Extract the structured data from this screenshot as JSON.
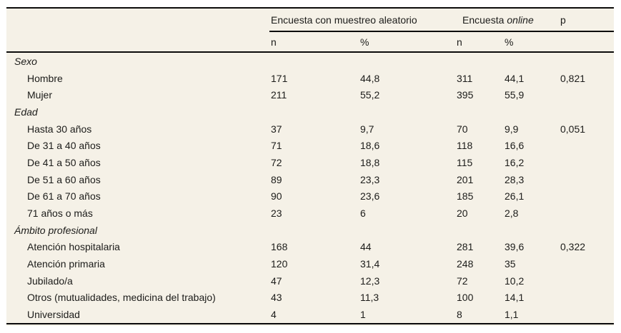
{
  "page": {
    "background": "#ffffff",
    "panel_background": "#f5f1e7",
    "rule_color": "#0b0b0b",
    "text_color": "#1c1c1a"
  },
  "table": {
    "header": {
      "group1": "Encuesta con muestreo aleatorio",
      "group2_prefix": "Encuesta",
      "group2_italic": "online",
      "p": "p",
      "subcols": [
        "n",
        "%",
        "n",
        "%"
      ]
    },
    "sections": [
      {
        "label": "Sexo",
        "rows": [
          {
            "label": "Hombre",
            "n1": "171",
            "pct1": "44,8",
            "n2": "311",
            "pct2": "44,1",
            "p": "0,821"
          },
          {
            "label": "Mujer",
            "n1": "211",
            "pct1": "55,2",
            "n2": "395",
            "pct2": "55,9",
            "p": ""
          }
        ]
      },
      {
        "label": "Edad",
        "rows": [
          {
            "label": "Hasta 30 años",
            "n1": "37",
            "pct1": "9,7",
            "n2": "70",
            "pct2": "9,9",
            "p": "0,051"
          },
          {
            "label": "De 31 a 40 años",
            "n1": "71",
            "pct1": "18,6",
            "n2": "118",
            "pct2": "16,6",
            "p": ""
          },
          {
            "label": "De 41 a 50 años",
            "n1": "72",
            "pct1": "18,8",
            "n2": "115",
            "pct2": "16,2",
            "p": ""
          },
          {
            "label": "De 51 a 60 años",
            "n1": "89",
            "pct1": "23,3",
            "n2": "201",
            "pct2": "28,3",
            "p": ""
          },
          {
            "label": "De 61 a 70 años",
            "n1": "90",
            "pct1": "23,6",
            "n2": "185",
            "pct2": "26,1",
            "p": ""
          },
          {
            "label": "71 años o más",
            "n1": "23",
            "pct1": "6",
            "n2": "20",
            "pct2": "2,8",
            "p": ""
          }
        ]
      },
      {
        "label": "Ámbito profesional",
        "rows": [
          {
            "label": "Atención hospitalaria",
            "n1": "168",
            "pct1": "44",
            "n2": "281",
            "pct2": "39,6",
            "p": "0,322"
          },
          {
            "label": "Atención primaria",
            "n1": "120",
            "pct1": "31,4",
            "n2": "248",
            "pct2": "35",
            "p": ""
          },
          {
            "label": "Jubilado/a",
            "n1": "47",
            "pct1": "12,3",
            "n2": "72",
            "pct2": "10,2",
            "p": ""
          },
          {
            "label": "Otros (mutualidades, medicina del trabajo)",
            "n1": "43",
            "pct1": "11,3",
            "n2": "100",
            "pct2": "14,1",
            "p": ""
          },
          {
            "label": "Universidad",
            "n1": "4",
            "pct1": "1",
            "n2": "8",
            "pct2": "1,1",
            "p": ""
          }
        ]
      }
    ]
  }
}
